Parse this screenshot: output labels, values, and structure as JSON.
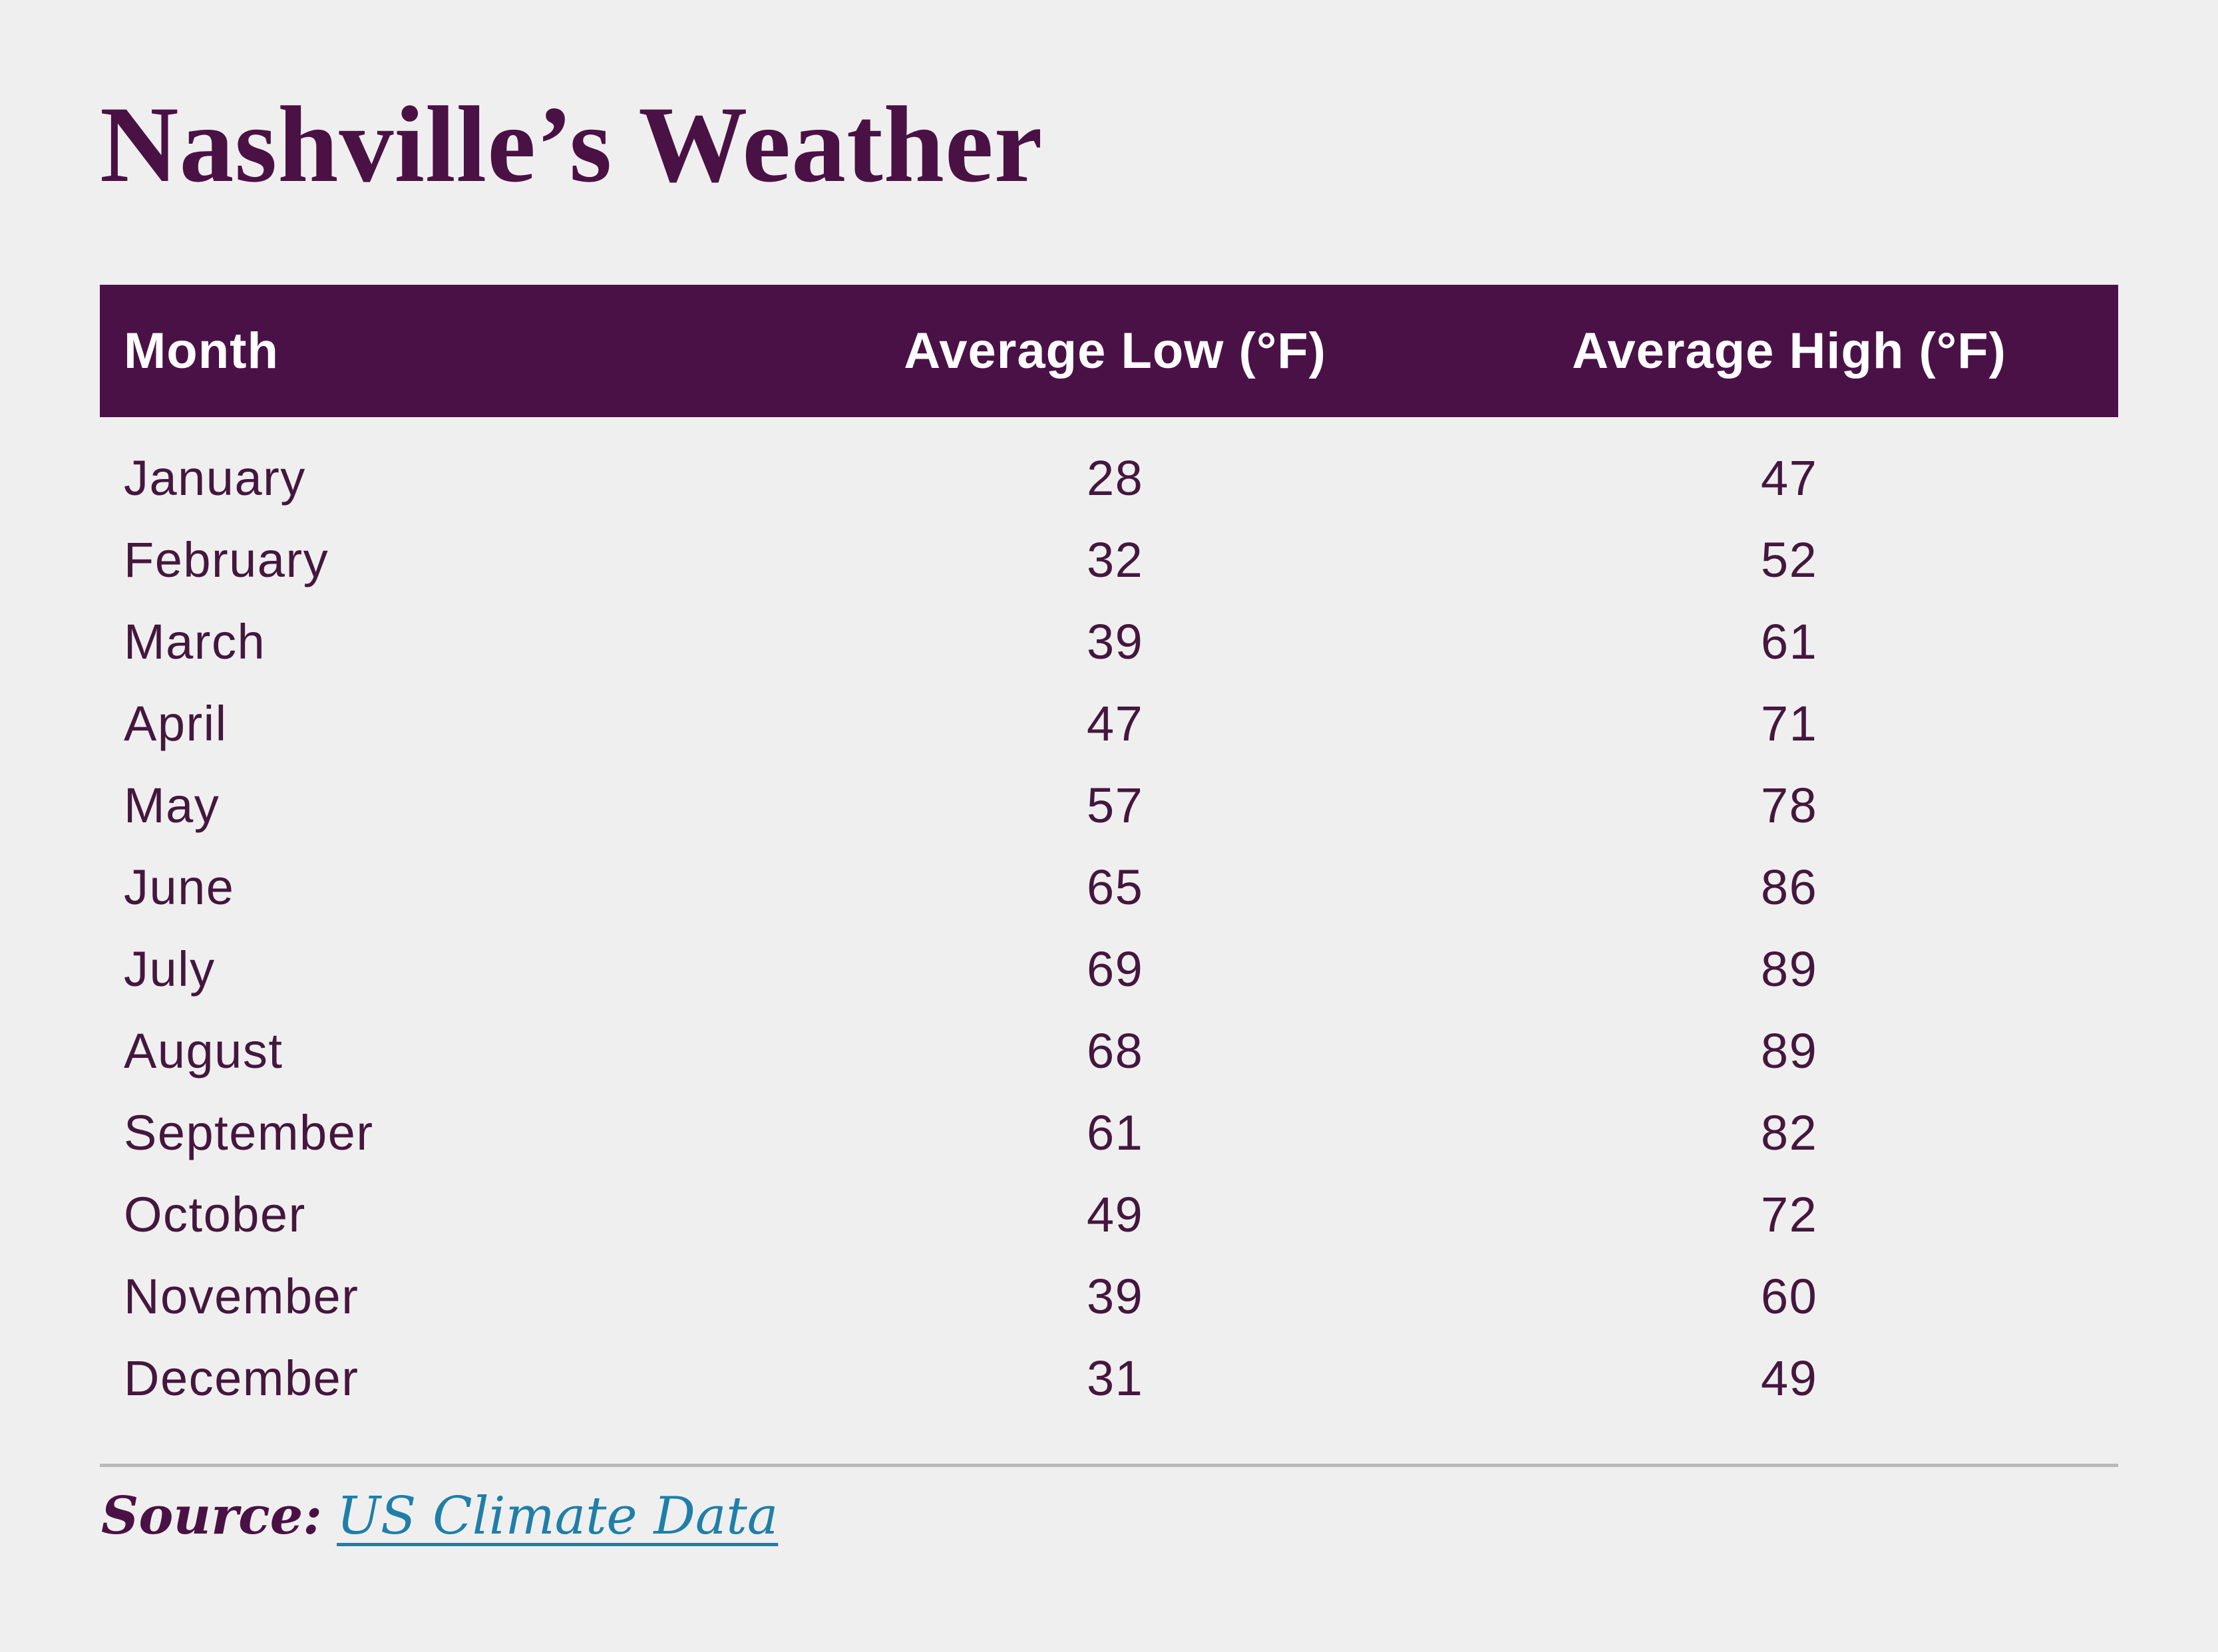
{
  "page": {
    "title": "Nashville’s Weather",
    "background_color": "#f0efef"
  },
  "colors": {
    "accent_purple": "#4a1147",
    "body_text_purple": "#44173e",
    "header_text": "#ffffff",
    "divider_gray": "#b9b9b9",
    "link_teal": "#1f7fa8"
  },
  "table": {
    "header": {
      "month": "Month",
      "low": "Average Low (°F)",
      "high": "Average High (°F)"
    },
    "rows": [
      {
        "month": "January",
        "low": "28",
        "high": "47"
      },
      {
        "month": "February",
        "low": "32",
        "high": "52"
      },
      {
        "month": "March",
        "low": "39",
        "high": "61"
      },
      {
        "month": "April",
        "low": "47",
        "high": "71"
      },
      {
        "month": "May",
        "low": "57",
        "high": "78"
      },
      {
        "month": "June",
        "low": "65",
        "high": "86"
      },
      {
        "month": "July",
        "low": "69",
        "high": "89"
      },
      {
        "month": "August",
        "low": "68",
        "high": "89"
      },
      {
        "month": "September",
        "low": "61",
        "high": "82"
      },
      {
        "month": "October",
        "low": "49",
        "high": "72"
      },
      {
        "month": "November",
        "low": "39",
        "high": "60"
      },
      {
        "month": "December",
        "low": "31",
        "high": "49"
      }
    ]
  },
  "footer": {
    "source_label": "Source:",
    "source_link": "US Climate Data"
  },
  "chart_data": {
    "type": "table",
    "title": "Nashville’s Weather",
    "columns": [
      "Month",
      "Average Low (°F)",
      "Average High (°F)"
    ],
    "categories": [
      "January",
      "February",
      "March",
      "April",
      "May",
      "June",
      "July",
      "August",
      "September",
      "October",
      "November",
      "December"
    ],
    "series": [
      {
        "name": "Average Low (°F)",
        "values": [
          28,
          32,
          39,
          47,
          57,
          65,
          69,
          68,
          61,
          49,
          39,
          31
        ]
      },
      {
        "name": "Average High (°F)",
        "values": [
          47,
          52,
          61,
          71,
          78,
          86,
          89,
          89,
          82,
          72,
          60,
          49
        ]
      }
    ],
    "source": "US Climate Data"
  }
}
